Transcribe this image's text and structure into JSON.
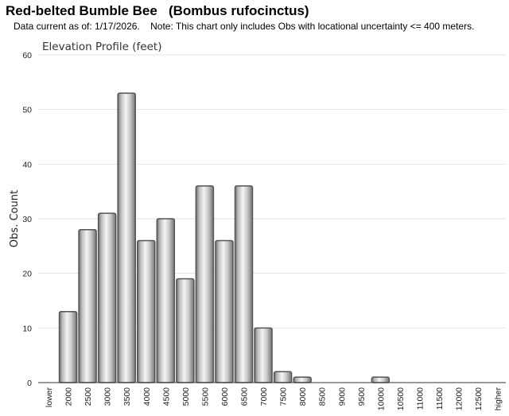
{
  "header": {
    "title": "Red-belted Bumble Bee   (Bombus rufocinctus)",
    "subtitle": "Data current as of: 1/17/2026.    Note: This chart only includes Obs with locational uncertainty <= 400 meters."
  },
  "chart_data": {
    "type": "bar",
    "title": "Elevation Profile (feet)",
    "xlabel": "",
    "ylabel": "Obs. Count",
    "ylim": [
      0,
      60
    ],
    "yticks": [
      0,
      10,
      20,
      30,
      40,
      50,
      60
    ],
    "grid": true,
    "legend": "none",
    "bar_color": "#c8c8c8",
    "bar_edge_color": "#555555",
    "categories": [
      "lower",
      "2000",
      "2500",
      "3000",
      "3500",
      "4000",
      "4500",
      "5000",
      "5500",
      "6000",
      "6500",
      "7000",
      "7500",
      "8000",
      "8500",
      "9000",
      "9500",
      "10000",
      "10500",
      "11000",
      "11500",
      "12000",
      "12500",
      "higher"
    ],
    "values": [
      0,
      13,
      28,
      31,
      53,
      26,
      30,
      19,
      36,
      26,
      36,
      10,
      2,
      1,
      0,
      0,
      0,
      1,
      0,
      0,
      0,
      0,
      0,
      0
    ]
  }
}
